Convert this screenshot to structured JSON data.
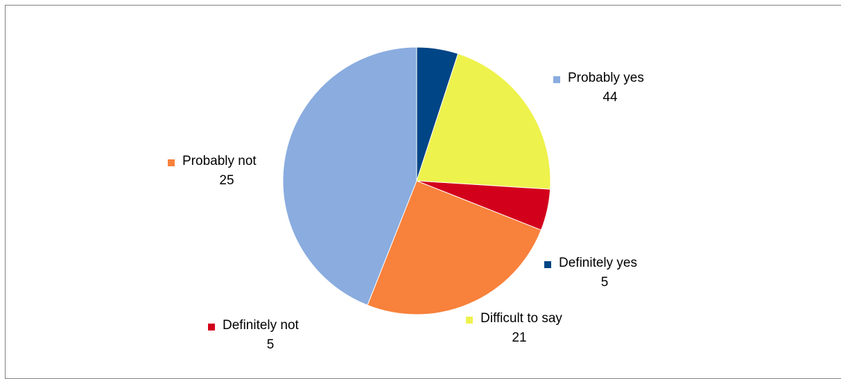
{
  "chart_data": {
    "type": "pie",
    "start_angle_deg": 0,
    "direction": "clockwise",
    "slices": [
      {
        "label": "Definitely yes",
        "value": 5,
        "color": "#004586"
      },
      {
        "label": "Difficult to say",
        "value": 21,
        "color": "#eef24c"
      },
      {
        "label": "Definitely not",
        "value": 5,
        "color": "#d3001c"
      },
      {
        "label": "Probably not",
        "value": 25,
        "color": "#f8813b"
      },
      {
        "label": "Probably yes",
        "value": 44,
        "color": "#8aacdf"
      }
    ],
    "labels_show": [
      "name",
      "value"
    ],
    "legend": "none"
  }
}
